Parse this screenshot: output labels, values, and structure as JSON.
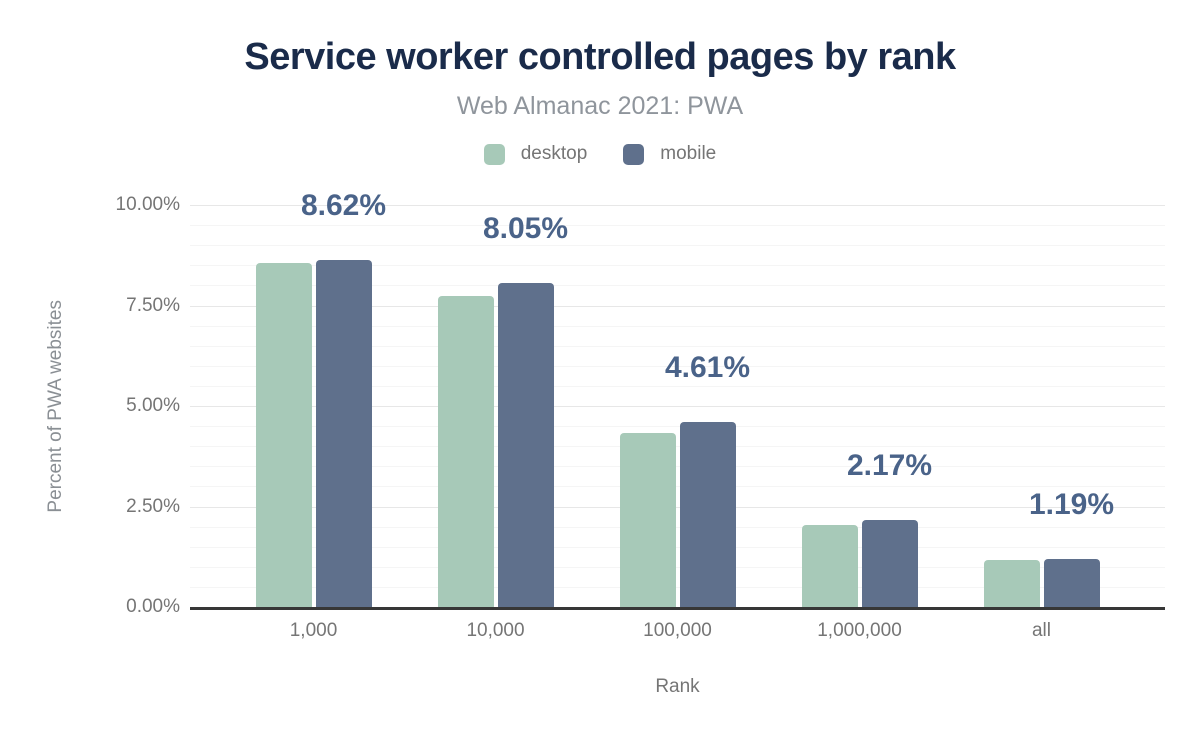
{
  "title": "Service worker controlled pages by rank",
  "subtitle": "Web Almanac 2021: PWA",
  "legend": {
    "items": [
      {
        "label": "desktop",
        "color": "#a7c9b8"
      },
      {
        "label": "mobile",
        "color": "#5f708c"
      }
    ]
  },
  "chart_data": {
    "type": "bar",
    "title": "Service worker controlled pages by rank",
    "subtitle": "Web Almanac 2021: PWA",
    "categories": [
      "1,000",
      "10,000",
      "100,000",
      "1,000,000",
      "all"
    ],
    "series": [
      {
        "name": "desktop",
        "color": "#a7c9b8",
        "values": [
          8.55,
          7.73,
          4.33,
          2.03,
          1.17
        ]
      },
      {
        "name": "mobile",
        "color": "#5f708c",
        "values": [
          8.62,
          8.05,
          4.61,
          2.17,
          1.19
        ]
      }
    ],
    "data_labels": {
      "on_series": "mobile",
      "values": [
        "8.62%",
        "8.05%",
        "4.61%",
        "2.17%",
        "1.19%"
      ]
    },
    "xlabel": "Rank",
    "ylabel": "Percent of PWA websites",
    "ylim": [
      0,
      10
    ],
    "yticks": [
      {
        "value": 0,
        "label": "0.00%"
      },
      {
        "value": 2.5,
        "label": "2.50%"
      },
      {
        "value": 5,
        "label": "5.00%"
      },
      {
        "value": 7.5,
        "label": "7.50%"
      },
      {
        "value": 10,
        "label": "10.00%"
      }
    ],
    "grid": {
      "major_step": 2.5,
      "minor_step": 0.5,
      "visible": true
    },
    "legend_position": "top"
  },
  "colors": {
    "title": "#1a2b4a",
    "subtitle": "#8f959c",
    "axis_text": "#757575",
    "data_label": "#4a6389",
    "axis_line": "#373737",
    "grid_major": "#e7e7e7",
    "grid_minor": "#f5f5f5",
    "desktop_bar": "#a7c9b8",
    "mobile_bar": "#5f708c",
    "background": "#ffffff"
  }
}
